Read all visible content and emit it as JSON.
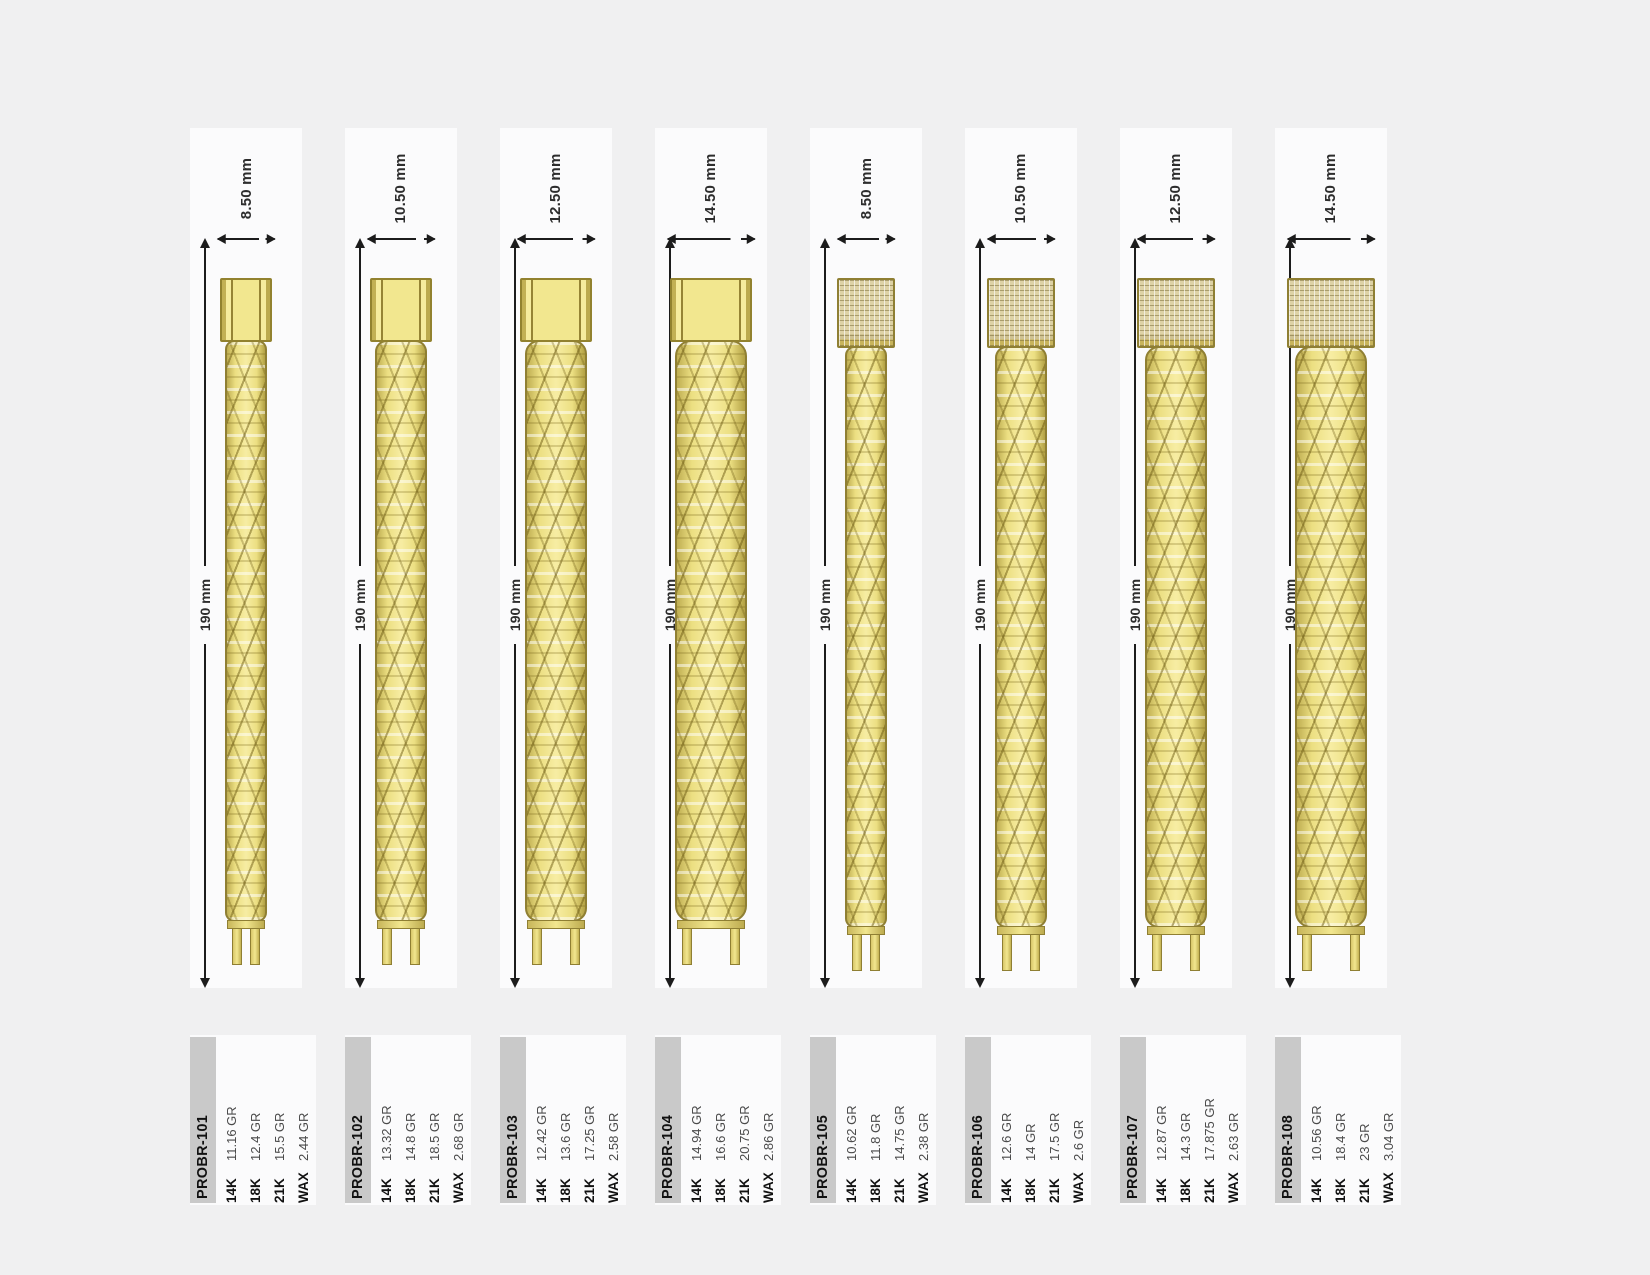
{
  "sheet": {
    "background": "#f0f0f1",
    "card_background": "#fbfbfc",
    "sku_strip_color": "#c9c9c9",
    "gold_color": "#f2e78e",
    "dimension_color": "#1c1c1c"
  },
  "products": [
    {
      "sku": "PROBR-101",
      "width": "8.50 mm",
      "length": "190 mm",
      "clasp": "plain",
      "specs": [
        {
          "karat": "14K",
          "weight": "11.16 GR"
        },
        {
          "karat": "18K",
          "weight": "12.4 GR"
        },
        {
          "karat": "21K",
          "weight": "15.5 GR"
        },
        {
          "karat": "WAX",
          "weight": "2.44 GR"
        }
      ]
    },
    {
      "sku": "PROBR-102",
      "width": "10.50 mm",
      "length": "190 mm",
      "clasp": "plain",
      "specs": [
        {
          "karat": "14K",
          "weight": "13.32 GR"
        },
        {
          "karat": "18K",
          "weight": "14.8 GR"
        },
        {
          "karat": "21K",
          "weight": "18.5 GR"
        },
        {
          "karat": "WAX",
          "weight": "2.68 GR"
        }
      ]
    },
    {
      "sku": "PROBR-103",
      "width": "12.50 mm",
      "length": "190 mm",
      "clasp": "plain",
      "specs": [
        {
          "karat": "14K",
          "weight": "12.42 GR"
        },
        {
          "karat": "18K",
          "weight": "13.6 GR"
        },
        {
          "karat": "21K",
          "weight": "17.25 GR"
        },
        {
          "karat": "WAX",
          "weight": "2.58 GR"
        }
      ]
    },
    {
      "sku": "PROBR-104",
      "width": "14.50 mm",
      "length": "190 mm",
      "clasp": "plain",
      "specs": [
        {
          "karat": "14K",
          "weight": "14.94 GR"
        },
        {
          "karat": "18K",
          "weight": "16.6 GR"
        },
        {
          "karat": "21K",
          "weight": "20.75 GR"
        },
        {
          "karat": "WAX",
          "weight": "2.86 GR"
        }
      ]
    },
    {
      "sku": "PROBR-105",
      "width": "8.50 mm",
      "length": "190 mm",
      "clasp": "pave",
      "specs": [
        {
          "karat": "14K",
          "weight": "10.62 GR"
        },
        {
          "karat": "18K",
          "weight": "11.8 GR"
        },
        {
          "karat": "21K",
          "weight": "14.75 GR"
        },
        {
          "karat": "WAX",
          "weight": "2.38 GR"
        }
      ]
    },
    {
      "sku": "PROBR-106",
      "width": "10.50 mm",
      "length": "190 mm",
      "clasp": "pave",
      "specs": [
        {
          "karat": "14K",
          "weight": "12.6 GR"
        },
        {
          "karat": "18K",
          "weight": "14 GR"
        },
        {
          "karat": "21K",
          "weight": "17.5 GR"
        },
        {
          "karat": "WAX",
          "weight": "2.6 GR"
        }
      ]
    },
    {
      "sku": "PROBR-107",
      "width": "12.50 mm",
      "length": "190 mm",
      "clasp": "pave",
      "specs": [
        {
          "karat": "14K",
          "weight": "12.87 GR"
        },
        {
          "karat": "18K",
          "weight": "14.3 GR"
        },
        {
          "karat": "21K",
          "weight": "17.875 GR"
        },
        {
          "karat": "WAX",
          "weight": "2.63 GR"
        }
      ]
    },
    {
      "sku": "PROBR-108",
      "width": "14.50 mm",
      "length": "190 mm",
      "clasp": "pave",
      "specs": [
        {
          "karat": "14K",
          "weight": "10.56 GR"
        },
        {
          "karat": "18K",
          "weight": "18.4 GR"
        },
        {
          "karat": "21K",
          "weight": "23 GR"
        },
        {
          "karat": "WAX",
          "weight": "3.04 GR"
        }
      ]
    }
  ]
}
